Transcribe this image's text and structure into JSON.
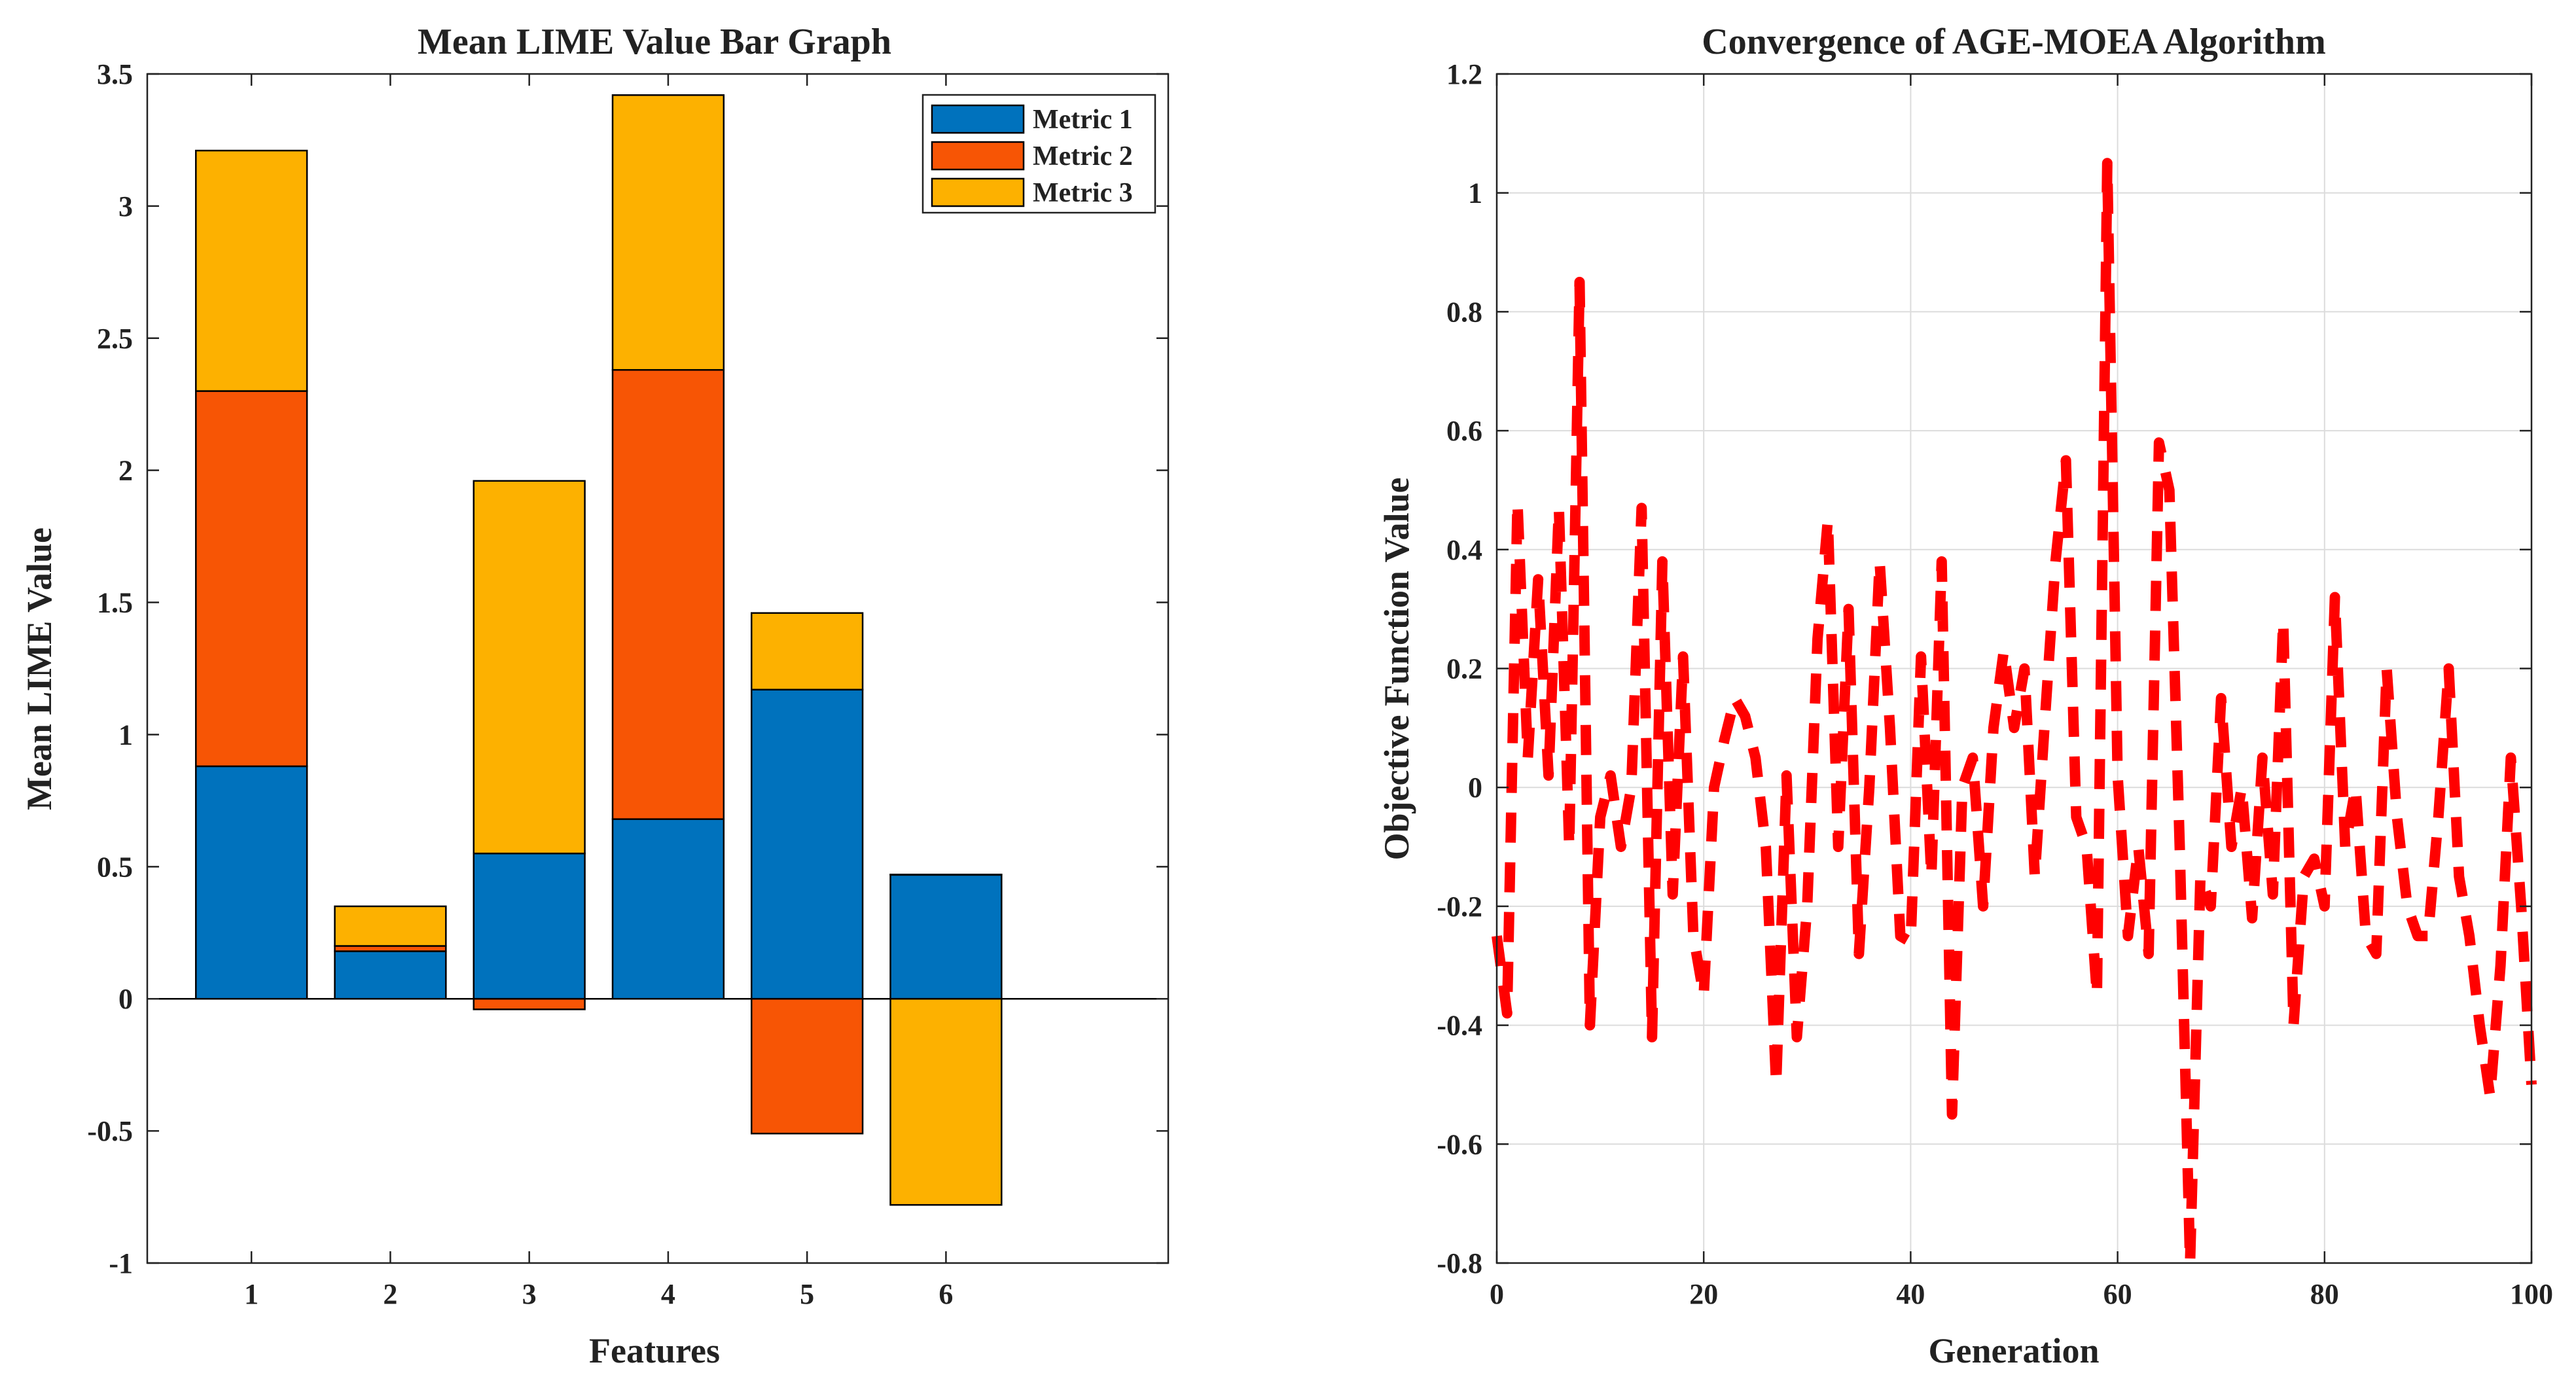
{
  "chart_data": [
    {
      "type": "bar",
      "stacked": true,
      "title": "Mean LIME Value Bar Graph",
      "xlabel": "Features",
      "ylabel": "Mean LIME Value",
      "categories": [
        "1",
        "2",
        "3",
        "4",
        "5",
        "6"
      ],
      "series": [
        {
          "name": "Metric 1",
          "color": "#0072BD",
          "values": [
            0.88,
            0.18,
            0.55,
            0.68,
            1.17,
            0.47
          ]
        },
        {
          "name": "Metric 2",
          "color": "#F75505",
          "values": [
            1.42,
            0.02,
            -0.04,
            1.7,
            -0.51,
            0.0
          ]
        },
        {
          "name": "Metric 3",
          "color": "#FDB100",
          "values": [
            0.91,
            0.15,
            1.41,
            1.04,
            0.29,
            -0.78
          ]
        }
      ],
      "ylim": [
        -1,
        3.5
      ],
      "yticks": [
        -1,
        -0.5,
        0,
        0.5,
        1,
        1.5,
        2,
        2.5,
        3,
        3.5
      ],
      "ytick_labels": [
        "-1",
        "-0.5",
        "0",
        "0.5",
        "1",
        "1.5",
        "2",
        "2.5",
        "3",
        "3.5"
      ],
      "grid": false,
      "legend": "top-right"
    },
    {
      "type": "line",
      "title": "Convergence of AGE-MOEA Algorithm",
      "xlabel": "Generation",
      "ylabel": "Objective Function Value",
      "line_color": "#FF0000",
      "line_style": "dashed",
      "x": [
        0,
        1,
        2,
        3,
        4,
        5,
        6,
        7,
        8,
        9,
        10,
        11,
        12,
        13,
        14,
        15,
        16,
        17,
        18,
        19,
        20,
        21,
        22,
        23,
        24,
        25,
        26,
        27,
        28,
        29,
        30,
        31,
        32,
        33,
        34,
        35,
        36,
        37,
        38,
        39,
        40,
        41,
        42,
        43,
        44,
        45,
        46,
        47,
        48,
        49,
        50,
        51,
        52,
        53,
        54,
        55,
        56,
        57,
        58,
        59,
        60,
        61,
        62,
        63,
        64,
        65,
        66,
        67,
        68,
        69,
        70,
        71,
        72,
        73,
        74,
        75,
        76,
        77,
        78,
        79,
        80,
        81,
        82,
        83,
        84,
        85,
        86,
        87,
        88,
        89,
        90,
        91,
        92,
        93,
        94,
        95,
        96,
        97,
        98,
        99,
        100
      ],
      "y": [
        -0.25,
        -0.38,
        0.48,
        0.05,
        0.35,
        0.02,
        0.47,
        -0.1,
        0.85,
        -0.4,
        -0.05,
        0.02,
        -0.1,
        0.0,
        0.47,
        -0.42,
        0.38,
        -0.18,
        0.22,
        -0.25,
        -0.35,
        0.0,
        0.08,
        0.15,
        0.12,
        0.05,
        -0.1,
        -0.5,
        0.02,
        -0.42,
        -0.2,
        0.25,
        0.45,
        -0.1,
        0.3,
        -0.28,
        0.0,
        0.38,
        0.1,
        -0.25,
        -0.26,
        0.22,
        -0.15,
        0.38,
        -0.55,
        0.0,
        0.05,
        -0.2,
        0.1,
        0.23,
        0.1,
        0.2,
        -0.15,
        0.12,
        0.38,
        0.55,
        -0.05,
        -0.1,
        -0.35,
        1.05,
        0.02,
        -0.25,
        -0.1,
        -0.28,
        0.58,
        0.5,
        -0.1,
        -0.8,
        -0.15,
        -0.2,
        0.15,
        -0.1,
        0.0,
        -0.22,
        0.05,
        -0.18,
        0.28,
        -0.4,
        -0.15,
        -0.12,
        -0.2,
        0.32,
        -0.1,
        0.0,
        -0.25,
        -0.28,
        0.2,
        -0.05,
        -0.2,
        -0.25,
        -0.25,
        -0.05,
        0.2,
        -0.15,
        -0.25,
        -0.4,
        -0.52,
        -0.3,
        0.05,
        -0.2,
        -0.5
      ],
      "xlim": [
        0,
        100
      ],
      "ylim": [
        -0.8,
        1.2
      ],
      "xticks": [
        0,
        20,
        40,
        60,
        80,
        100
      ],
      "xtick_labels": [
        "0",
        "20",
        "40",
        "60",
        "80",
        "100"
      ],
      "yticks": [
        -0.8,
        -0.6,
        -0.4,
        -0.2,
        0,
        0.2,
        0.4,
        0.6,
        0.8,
        1,
        1.2
      ],
      "ytick_labels": [
        "-0.8",
        "-0.6",
        "-0.4",
        "-0.2",
        "0",
        "0.2",
        "0.4",
        "0.6",
        "0.8",
        "1",
        "1.2"
      ],
      "grid": true,
      "legend": "none"
    }
  ]
}
